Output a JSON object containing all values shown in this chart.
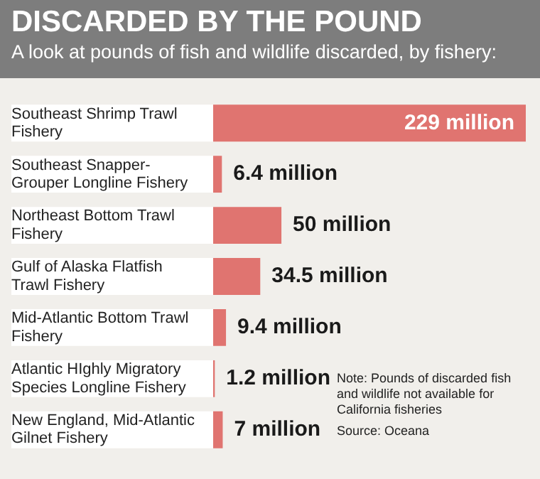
{
  "chart_data": {
    "type": "bar",
    "orientation": "horizontal",
    "title": "DISCARDED BY THE POUND",
    "subtitle": "A look at pounds of fish and wildlife discarded, by fishery:",
    "categories": [
      "Southeast Shrimp Trawl Fishery",
      "Southeast Snapper-Grouper Longline Fishery",
      "Northeast Bottom Trawl Fishery",
      "Gulf of Alaska Flatfish Trawl Fishery",
      "Mid-Atlantic Bottom Trawl Fishery",
      "Atlantic HIghly Migratory Species Longline Fishery",
      "New England, Mid-Atlantic Gilnet Fishery"
    ],
    "values": [
      229,
      6.4,
      50,
      34.5,
      9.4,
      1.2,
      7
    ],
    "value_labels": [
      "229 million",
      "6.4 million",
      "50 million",
      "34.5 million",
      "9.4 million",
      "1.2 million",
      "7 million"
    ],
    "color": "#e07470",
    "annotations": [
      "Note: Pounds of discarded fish and wildlife not available for California fisheries",
      "Source: Oceana"
    ],
    "legend": false
  }
}
